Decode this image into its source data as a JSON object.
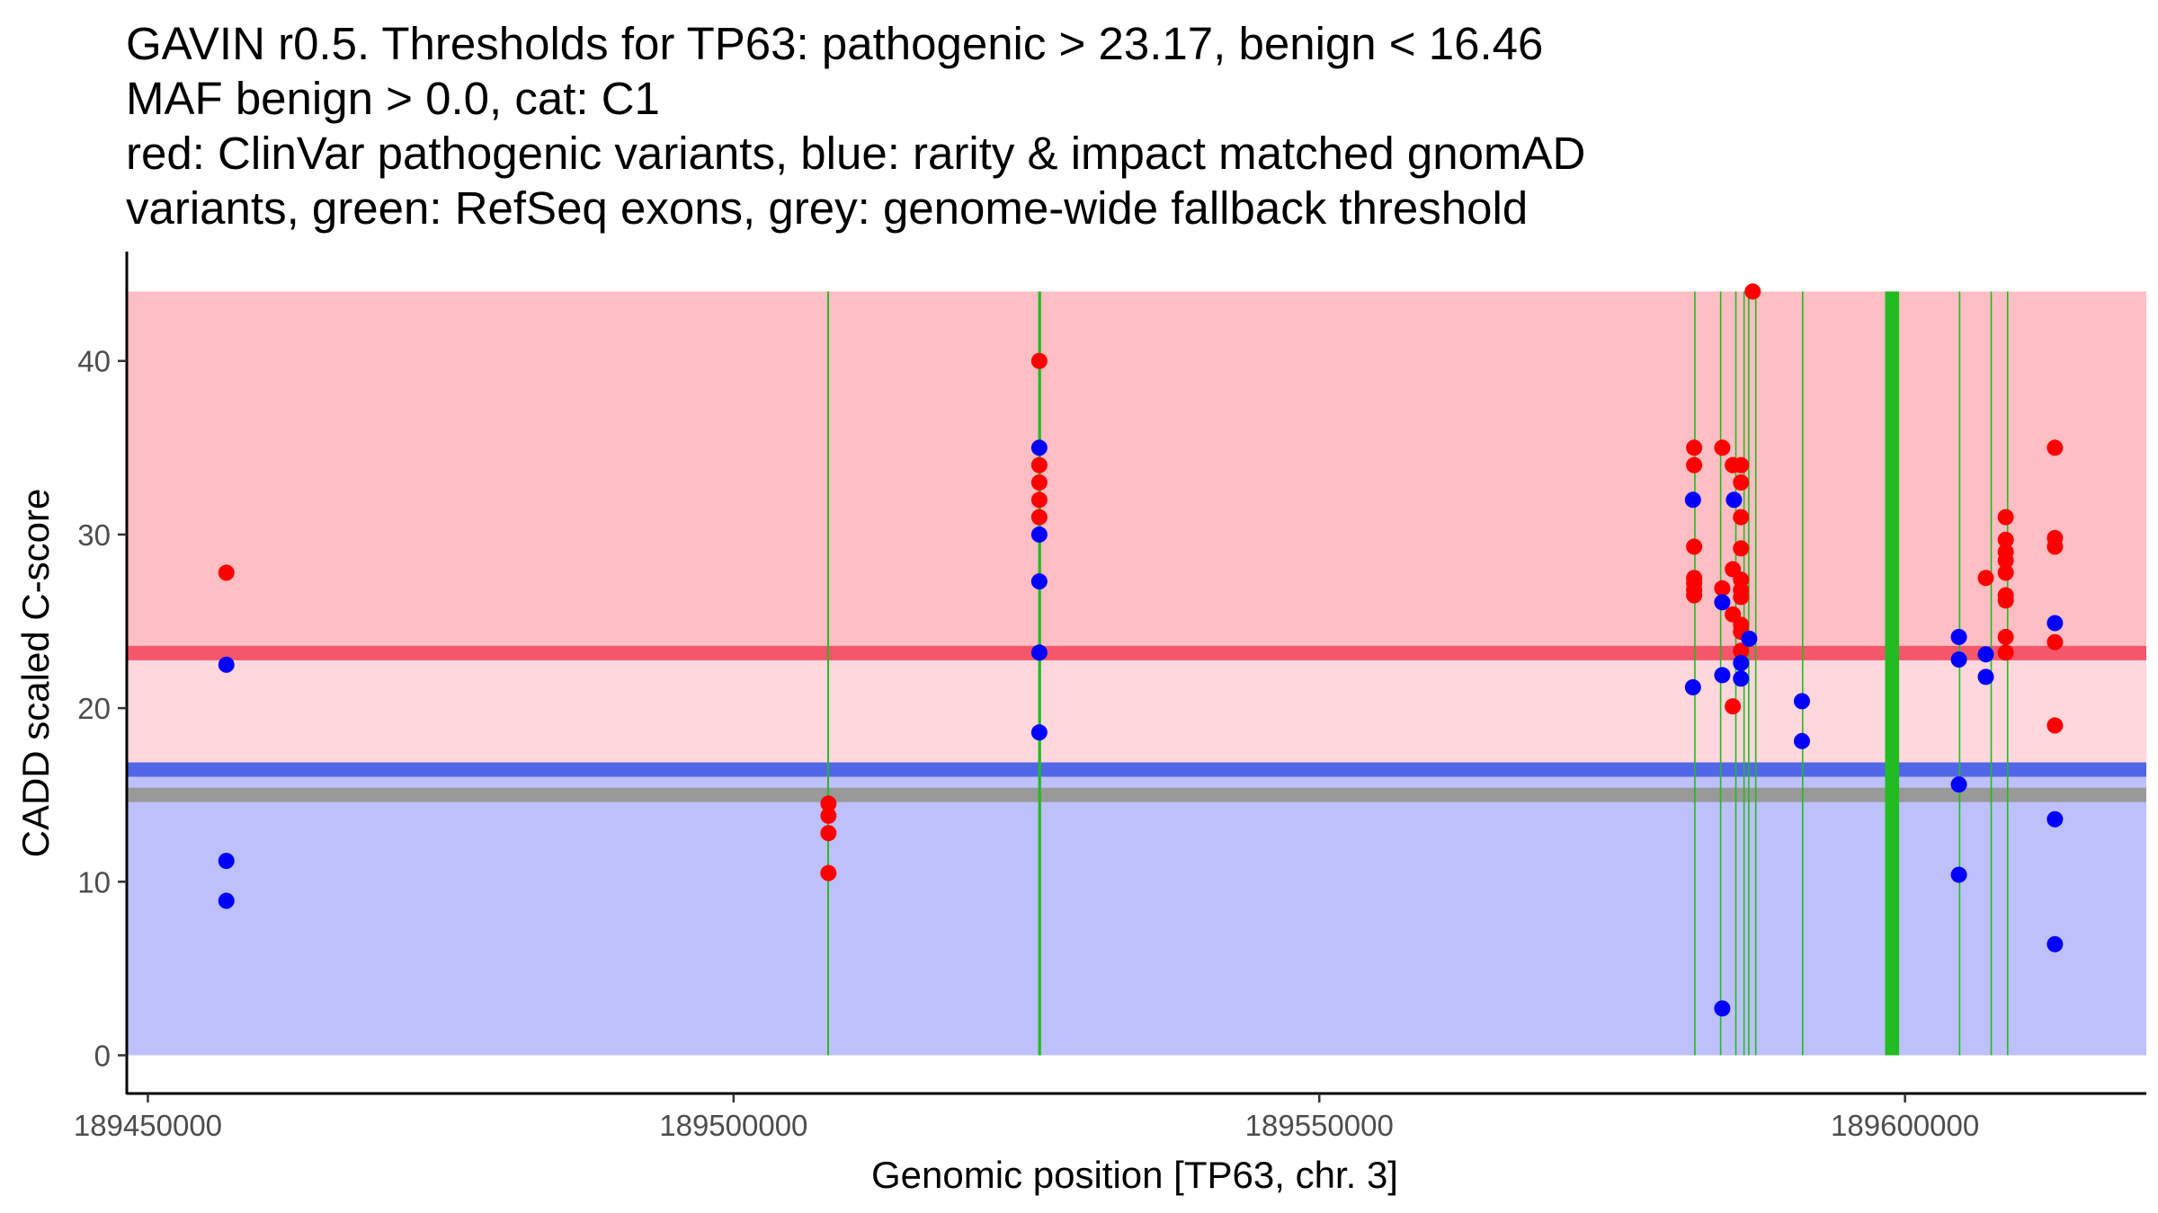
{
  "chart_data": {
    "type": "scatter",
    "title_lines": [
      "GAVIN r0.5. Thresholds for TP63: pathogenic > 23.17, benign < 16.46",
      "MAF benign > 0.0, cat: C1",
      "red: ClinVar pathogenic variants, blue: rarity & impact matched gnomAD",
      "variants, green: RefSeq exons, grey: genome-wide fallback threshold"
    ],
    "xlabel": "Genomic position [TP63, chr. 3]",
    "ylabel": "CADD scaled C-score",
    "xlim": [
      189448200,
      189620600
    ],
    "ylim": [
      -2.2,
      46.3
    ],
    "x_ticks": [
      {
        "value": 189450000,
        "label": "189450000"
      },
      {
        "value": 189500000,
        "label": "189500000"
      },
      {
        "value": 189550000,
        "label": "189550000"
      },
      {
        "value": 189600000,
        "label": "189600000"
      }
    ],
    "y_ticks": [
      {
        "value": 0,
        "label": "0"
      },
      {
        "value": 10,
        "label": "10"
      },
      {
        "value": 20,
        "label": "20"
      },
      {
        "value": 30,
        "label": "30"
      },
      {
        "value": 40,
        "label": "40"
      }
    ],
    "bands": {
      "region_x": [
        189448200,
        189620600
      ],
      "pathogenic_zone": {
        "from": 23.17,
        "to": 44,
        "color": "#FFBEC3"
      },
      "intermediate_zone": {
        "from": 16.46,
        "to": 23.17,
        "color": "#FFD7DC"
      },
      "benign_zone": {
        "from": 0,
        "to": 16.46,
        "color": "#BDC0FA"
      }
    },
    "threshold_lines": [
      {
        "name": "pathogenic-threshold",
        "value": 23.17,
        "color": "#F5566A"
      },
      {
        "name": "benign-threshold",
        "value": 16.46,
        "color": "#5266E8"
      },
      {
        "name": "genome-wide-fallback-threshold",
        "value": 15.0,
        "color": "#999999"
      }
    ],
    "exons": {
      "color": "#22BB22",
      "y_range": [
        0,
        44
      ],
      "regions": [
        [
          189508000,
          189508150
        ],
        [
          189526000,
          189526250
        ],
        [
          189582000,
          189582100
        ],
        [
          189584200,
          189584300
        ],
        [
          189585500,
          189585600
        ],
        [
          189586200,
          189586300
        ],
        [
          189586600,
          189586700
        ],
        [
          189587200,
          189587300
        ],
        [
          189591200,
          189591300
        ],
        [
          189598300,
          189599500
        ],
        [
          189604600,
          189604700
        ],
        [
          189607300,
          189607400
        ],
        [
          189608700,
          189608800
        ]
      ]
    },
    "series": [
      {
        "name": "ClinVar pathogenic variants",
        "color": "#FF0000",
        "points": [
          [
            189456700,
            27.8
          ],
          [
            189508100,
            14.5
          ],
          [
            189508100,
            13.8
          ],
          [
            189508100,
            12.8
          ],
          [
            189508100,
            10.5
          ],
          [
            189526100,
            40.0
          ],
          [
            189526100,
            34.0
          ],
          [
            189526100,
            33.0
          ],
          [
            189526100,
            32.0
          ],
          [
            189526100,
            31.0
          ],
          [
            189582000,
            35.0
          ],
          [
            189582000,
            34.0
          ],
          [
            189582000,
            29.3
          ],
          [
            189582000,
            27.5
          ],
          [
            189582000,
            27.2
          ],
          [
            189582000,
            26.8
          ],
          [
            189582000,
            26.5
          ],
          [
            189584400,
            35.0
          ],
          [
            189584400,
            26.9
          ],
          [
            189585300,
            34.0
          ],
          [
            189585300,
            28.0
          ],
          [
            189585300,
            25.4
          ],
          [
            189585300,
            20.1
          ],
          [
            189586000,
            34.0
          ],
          [
            189586000,
            33.0
          ],
          [
            189586000,
            31.0
          ],
          [
            189586000,
            29.2
          ],
          [
            189586000,
            27.4
          ],
          [
            189586000,
            26.8
          ],
          [
            189586000,
            26.4
          ],
          [
            189586000,
            24.8
          ],
          [
            189586000,
            24.4
          ],
          [
            189586000,
            23.3
          ],
          [
            189587000,
            44.0
          ],
          [
            189606900,
            27.5
          ],
          [
            189608600,
            31.0
          ],
          [
            189608600,
            29.7
          ],
          [
            189608600,
            29.0
          ],
          [
            189608600,
            28.5
          ],
          [
            189608600,
            27.8
          ],
          [
            189608600,
            26.5
          ],
          [
            189608600,
            26.2
          ],
          [
            189608600,
            24.1
          ],
          [
            189608600,
            23.2
          ],
          [
            189612800,
            35.0
          ],
          [
            189612800,
            29.8
          ],
          [
            189612800,
            29.3
          ],
          [
            189612800,
            23.8
          ],
          [
            189612800,
            19.0
          ]
        ]
      },
      {
        "name": "rarity & impact matched gnomAD variants",
        "color": "#0000FF",
        "points": [
          [
            189456700,
            22.5
          ],
          [
            189456700,
            11.2
          ],
          [
            189456700,
            8.9
          ],
          [
            189526100,
            35.0
          ],
          [
            189526100,
            30.0
          ],
          [
            189526100,
            27.3
          ],
          [
            189526100,
            23.2
          ],
          [
            189526100,
            18.6
          ],
          [
            189581900,
            32.0
          ],
          [
            189581900,
            21.2
          ],
          [
            189584400,
            26.1
          ],
          [
            189584400,
            21.9
          ],
          [
            189584400,
            2.7
          ],
          [
            189585400,
            32.0
          ],
          [
            189586000,
            22.6
          ],
          [
            189586000,
            21.7
          ],
          [
            189586700,
            24.0
          ],
          [
            189591200,
            20.4
          ],
          [
            189591200,
            18.1
          ],
          [
            189604600,
            24.1
          ],
          [
            189604600,
            22.8
          ],
          [
            189604600,
            15.6
          ],
          [
            189604600,
            10.4
          ],
          [
            189606900,
            23.1
          ],
          [
            189606900,
            21.8
          ],
          [
            189612800,
            24.9
          ],
          [
            189612800,
            13.6
          ],
          [
            189612800,
            6.4
          ]
        ]
      }
    ]
  }
}
